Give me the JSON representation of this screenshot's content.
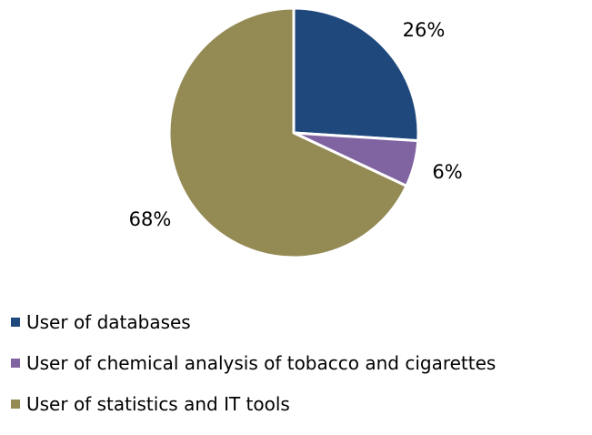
{
  "chart_data": {
    "type": "pie",
    "categories": [
      "User of databases",
      "User of chemical analysis of tobacco and cigarettes",
      "User of statistics and IT tools"
    ],
    "values": [
      26,
      6,
      68
    ],
    "labels": [
      "26%",
      "6%",
      "68%"
    ],
    "colors": [
      "#1F497D",
      "#8064A2",
      "#948A54"
    ],
    "title": "",
    "legend_position": "bottom"
  }
}
